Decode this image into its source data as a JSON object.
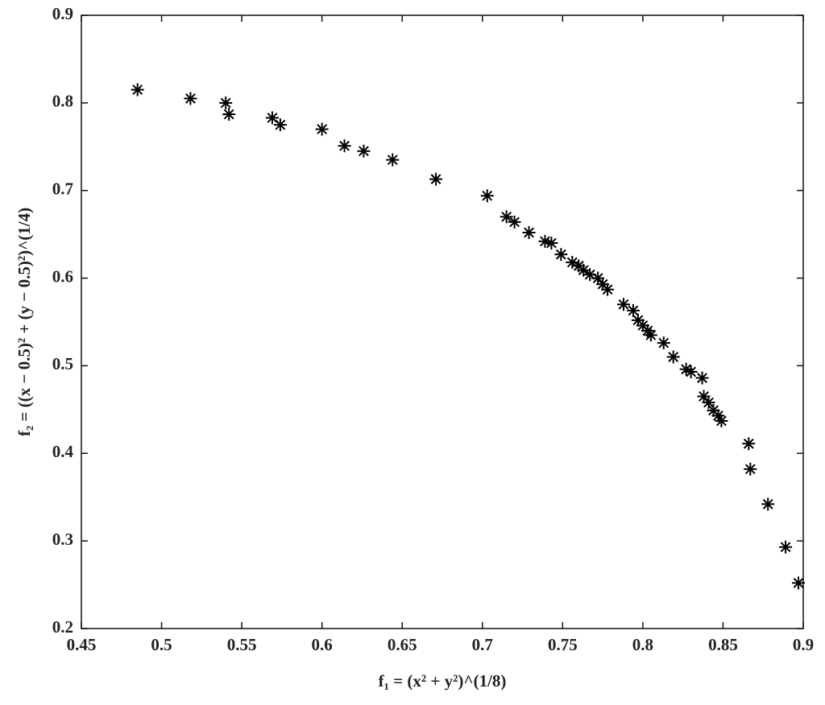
{
  "chart_data": {
    "type": "scatter",
    "x_label": "f₁ = (x² + y²)^(1/8)",
    "y_label": "f₂ = ((x − 0.5)² + (y − 0.5)²)^(1/4)",
    "x": [
      0.485,
      0.518,
      0.54,
      0.542,
      0.569,
      0.574,
      0.6,
      0.614,
      0.626,
      0.644,
      0.671,
      0.703,
      0.715,
      0.72,
      0.729,
      0.739,
      0.743,
      0.749,
      0.756,
      0.76,
      0.763,
      0.767,
      0.772,
      0.775,
      0.778,
      0.788,
      0.794,
      0.797,
      0.8,
      0.803,
      0.805,
      0.813,
      0.819,
      0.827,
      0.83,
      0.837,
      0.838,
      0.841,
      0.844,
      0.847,
      0.849,
      0.866,
      0.867,
      0.878,
      0.889,
      0.897
    ],
    "values": [
      0.815,
      0.805,
      0.8,
      0.787,
      0.783,
      0.775,
      0.77,
      0.751,
      0.745,
      0.735,
      0.713,
      0.694,
      0.67,
      0.664,
      0.652,
      0.642,
      0.64,
      0.627,
      0.618,
      0.614,
      0.609,
      0.604,
      0.6,
      0.593,
      0.587,
      0.57,
      0.563,
      0.552,
      0.546,
      0.54,
      0.535,
      0.526,
      0.51,
      0.496,
      0.493,
      0.486,
      0.465,
      0.458,
      0.449,
      0.443,
      0.437,
      0.411,
      0.382,
      0.342,
      0.293,
      0.252
    ],
    "color": "#000000",
    "xlim": [
      0.45,
      0.9
    ],
    "xticks": [
      0.45,
      0.5,
      0.55,
      0.6,
      0.65,
      0.7,
      0.75,
      0.8,
      0.85,
      0.9
    ],
    "ylim": [
      0.2,
      0.9
    ],
    "yticks": [
      0.2,
      0.3,
      0.4,
      0.5,
      0.6,
      0.7,
      0.8,
      0.9
    ],
    "grid": false
  }
}
